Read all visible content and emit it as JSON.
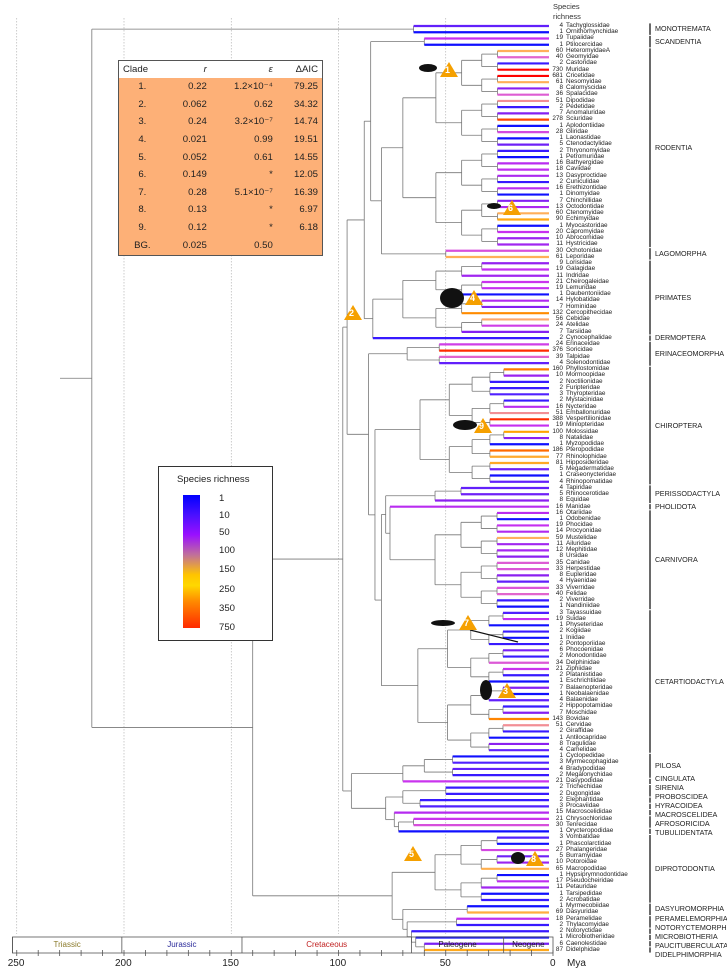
{
  "header": {
    "line1": "Species",
    "line2": "richness"
  },
  "tips": [
    {
      "name": "Tachyglossidae",
      "richness": 4
    },
    {
      "name": "Ornithorhynchidae",
      "richness": 1
    },
    {
      "name": "Tupaiidae",
      "richness": 19
    },
    {
      "name": "Ptilocercidae",
      "richness": 1
    },
    {
      "name": "HeteromyidaeA",
      "richness": 60
    },
    {
      "name": "Geomyidae",
      "richness": 40
    },
    {
      "name": "Castoridae",
      "richness": 2
    },
    {
      "name": "Muridae",
      "richness": 730
    },
    {
      "name": "Cricetidae",
      "richness": 681
    },
    {
      "name": "Nesomyidae",
      "richness": 61
    },
    {
      "name": "Calomyscidae",
      "richness": 8
    },
    {
      "name": "Spalacidae",
      "richness": 36
    },
    {
      "name": "Dipodidae",
      "richness": 51
    },
    {
      "name": "Pedetidae",
      "richness": 2
    },
    {
      "name": "Anomaluridae",
      "richness": 7
    },
    {
      "name": "Sciuridae",
      "richness": 278
    },
    {
      "name": "Aplodontiidae",
      "richness": 1
    },
    {
      "name": "Gliridae",
      "richness": 28
    },
    {
      "name": "Laonastidae",
      "richness": 1
    },
    {
      "name": "Ctenodactylidae",
      "richness": 5
    },
    {
      "name": "Thryonomyidae",
      "richness": 2
    },
    {
      "name": "Petromuridae",
      "richness": 1
    },
    {
      "name": "Bathyergidae",
      "richness": 16
    },
    {
      "name": "Caviidae",
      "richness": 18
    },
    {
      "name": "Dasyproctidae",
      "richness": 13
    },
    {
      "name": "Cuniculidae",
      "richness": 2
    },
    {
      "name": "Erethizontidae",
      "richness": 16
    },
    {
      "name": "Dinomyidae",
      "richness": 1
    },
    {
      "name": "Chinchillidae",
      "richness": 7
    },
    {
      "name": "Octodontidae",
      "richness": 13
    },
    {
      "name": "Ctenomyidae",
      "richness": 60
    },
    {
      "name": "Echimyidae",
      "richness": 90
    },
    {
      "name": "Myocastoridae",
      "richness": 1
    },
    {
      "name": "Capromyidae",
      "richness": 20
    },
    {
      "name": "Abrocomidae",
      "richness": 10
    },
    {
      "name": "Hystricidae",
      "richness": 11
    },
    {
      "name": "Ochotonidae",
      "richness": 30
    },
    {
      "name": "Leporidae",
      "richness": 61
    },
    {
      "name": "Lorisidae",
      "richness": 9
    },
    {
      "name": "Galagidae",
      "richness": 19
    },
    {
      "name": "Indridae",
      "richness": 11
    },
    {
      "name": "Cheirogaleidae",
      "richness": 21
    },
    {
      "name": "Lemuridae",
      "richness": 19
    },
    {
      "name": "Daubentoniidae",
      "richness": 1
    },
    {
      "name": "Hylobatidae",
      "richness": 14
    },
    {
      "name": "Hominidae",
      "richness": 7
    },
    {
      "name": "Cercopithecidae",
      "richness": 132
    },
    {
      "name": "Cebidae",
      "richness": 56
    },
    {
      "name": "Atelidae",
      "richness": 24
    },
    {
      "name": "Tarsiidae",
      "richness": 7
    },
    {
      "name": "Cynocephalidae",
      "richness": 2
    },
    {
      "name": "Erinaceidae",
      "richness": 24
    },
    {
      "name": "Soricidae",
      "richness": 376
    },
    {
      "name": "Talpidae",
      "richness": 39
    },
    {
      "name": "Solenodontidae",
      "richness": 4
    },
    {
      "name": "Phyllostomidae",
      "richness": 160
    },
    {
      "name": "Mormoopidae",
      "richness": 10
    },
    {
      "name": "Noctilionidae",
      "richness": 2
    },
    {
      "name": "Furipteridae",
      "richness": 2
    },
    {
      "name": "Thyropteridae",
      "richness": 3
    },
    {
      "name": "Mystacinidae",
      "richness": 2
    },
    {
      "name": "Nycteridae",
      "richness": 16
    },
    {
      "name": "Emballonuridae",
      "richness": 51
    },
    {
      "name": "Vespertilionidae",
      "richness": 388
    },
    {
      "name": "Miniopteridae",
      "richness": 19
    },
    {
      "name": "Molossidae",
      "richness": 100
    },
    {
      "name": "Natalidae",
      "richness": 8
    },
    {
      "name": "Myzopodidae",
      "richness": 1
    },
    {
      "name": "Pteropodidae",
      "richness": 186
    },
    {
      "name": "Rhinolophidae",
      "richness": 77
    },
    {
      "name": "Hipposideridae",
      "richness": 81
    },
    {
      "name": "Megadermatidae",
      "richness": 5
    },
    {
      "name": "Craseonycteridae",
      "richness": 1
    },
    {
      "name": "Rhinopomatidae",
      "richness": 4
    },
    {
      "name": "Tapiridae",
      "richness": 4
    },
    {
      "name": "Rhinocerotidae",
      "richness": 5
    },
    {
      "name": "Equidae",
      "richness": 8
    },
    {
      "name": "Manidae",
      "richness": 16
    },
    {
      "name": "Otariidae",
      "richness": 16
    },
    {
      "name": "Odobenidae",
      "richness": 1
    },
    {
      "name": "Phocidae",
      "richness": 19
    },
    {
      "name": "Procyonidae",
      "richness": 14
    },
    {
      "name": "Mustelidae",
      "richness": 59
    },
    {
      "name": "Ailuridae",
      "richness": 11
    },
    {
      "name": "Mephitidae",
      "richness": 12
    },
    {
      "name": "Ursidae",
      "richness": 8
    },
    {
      "name": "Canidae",
      "richness": 35
    },
    {
      "name": "Herpestidae",
      "richness": 33
    },
    {
      "name": "Eupleridae",
      "richness": 8
    },
    {
      "name": "Hyaenidae",
      "richness": 4
    },
    {
      "name": "Viverridae",
      "richness": 33
    },
    {
      "name": "Felidae",
      "richness": 40
    },
    {
      "name": "Viverridae",
      "richness": 2
    },
    {
      "name": "Nandiniidae",
      "richness": 1
    },
    {
      "name": "Tayassuidae",
      "richness": 3
    },
    {
      "name": "Suidae",
      "richness": 19
    },
    {
      "name": "Physeteridae",
      "richness": 1
    },
    {
      "name": "Kogiidae",
      "richness": 2
    },
    {
      "name": "Iniidae",
      "richness": 1
    },
    {
      "name": "Pontoporiidae",
      "richness": 2
    },
    {
      "name": "Phocoenidae",
      "richness": 6
    },
    {
      "name": "Monodontidae",
      "richness": 2
    },
    {
      "name": "Delphinidae",
      "richness": 34
    },
    {
      "name": "Ziphiidae",
      "richness": 21
    },
    {
      "name": "Platanistidae",
      "richness": 2
    },
    {
      "name": "Eschrichtiidae",
      "richness": 1
    },
    {
      "name": "Balaenopteridae",
      "richness": 7
    },
    {
      "name": "Neobalaenidae",
      "richness": 1
    },
    {
      "name": "Balaenidae",
      "richness": 4
    },
    {
      "name": "Hippopotamidae",
      "richness": 2
    },
    {
      "name": "Moschidae",
      "richness": 7
    },
    {
      "name": "Bovidae",
      "richness": 143
    },
    {
      "name": "Cervidae",
      "richness": 51
    },
    {
      "name": "Giraffidae",
      "richness": 2
    },
    {
      "name": "Antilocapridae",
      "richness": 1
    },
    {
      "name": "Tragulidae",
      "richness": 8
    },
    {
      "name": "Camelidae",
      "richness": 4
    },
    {
      "name": "Cyclopedidae",
      "richness": 1
    },
    {
      "name": "Myrmecophagidae",
      "richness": 3
    },
    {
      "name": "Bradypodidae",
      "richness": 4
    },
    {
      "name": "Megalonychidae",
      "richness": 2
    },
    {
      "name": "Dasypodidae",
      "richness": 21
    },
    {
      "name": "Trichechidae",
      "richness": 2
    },
    {
      "name": "Dugongidae",
      "richness": 2
    },
    {
      "name": "Elephantidae",
      "richness": 2
    },
    {
      "name": "Procaviidae",
      "richness": 3
    },
    {
      "name": "Macroscelididae",
      "richness": 15
    },
    {
      "name": "Chrysochloridae",
      "richness": 21
    },
    {
      "name": "Tenrecidae",
      "richness": 30
    },
    {
      "name": "Orycteropodidae",
      "richness": 1
    },
    {
      "name": "Vombatidae",
      "richness": 3
    },
    {
      "name": "Phascolarctidae",
      "richness": 1
    },
    {
      "name": "Phalangeridae",
      "richness": 27
    },
    {
      "name": "Burramyidae",
      "richness": 5
    },
    {
      "name": "Potoroidae",
      "richness": 10
    },
    {
      "name": "Macropodidae",
      "richness": 65
    },
    {
      "name": "Hypsiprymnodontidae",
      "richness": 1
    },
    {
      "name": "Pseudocheiridae",
      "richness": 17
    },
    {
      "name": "Petauridae",
      "richness": 11
    },
    {
      "name": "Tarsipedidae",
      "richness": 1
    },
    {
      "name": "Acrobatidae",
      "richness": 2
    },
    {
      "name": "Myrmecobiidae",
      "richness": 1
    },
    {
      "name": "Dasyuridae",
      "richness": 69
    },
    {
      "name": "Peramelidae",
      "richness": 18
    },
    {
      "name": "Thylacomyidae",
      "richness": 2
    },
    {
      "name": "Notoryctidae",
      "richness": 2
    },
    {
      "name": "Microbiotheriidae",
      "richness": 1
    },
    {
      "name": "Caenolestidae",
      "richness": 6
    },
    {
      "name": "Didelphidae",
      "richness": 87
    }
  ],
  "orders": [
    {
      "name": "MONOTREMATA",
      "first": 0,
      "last": 1,
      "crown_age": 65
    },
    {
      "name": "SCANDENTIA",
      "first": 2,
      "last": 3,
      "crown_age": 60
    },
    {
      "name": "RODENTIA",
      "first": 4,
      "last": 35,
      "crown_age": 70
    },
    {
      "name": "LAGOMORPHA",
      "first": 36,
      "last": 37,
      "crown_age": 50
    },
    {
      "name": "PRIMATES",
      "first": 38,
      "last": 49,
      "crown_age": 70
    },
    {
      "name": "DERMOPTERA",
      "first": 50,
      "last": 50,
      "crown_age": 0
    },
    {
      "name": "ERINACEOMORPHA",
      "first": 51,
      "last": 54,
      "crown_age": 68
    },
    {
      "name": "CHIROPTERA",
      "first": 55,
      "last": 73,
      "crown_age": 62
    },
    {
      "name": "PERISSODACTYLA",
      "first": 74,
      "last": 76,
      "crown_age": 55
    },
    {
      "name": "PHOLIDOTA",
      "first": 77,
      "last": 77,
      "crown_age": 0
    },
    {
      "name": "CARNIVORA",
      "first": 78,
      "last": 93,
      "crown_age": 55
    },
    {
      "name": "CETARTIODACTYLA",
      "first": 94,
      "last": 116,
      "crown_age": 63
    },
    {
      "name": "PILOSA",
      "first": 117,
      "last": 120,
      "crown_age": 60
    },
    {
      "name": "CINGULATA",
      "first": 121,
      "last": 121,
      "crown_age": 0
    },
    {
      "name": "SIRENIA",
      "first": 122,
      "last": 123,
      "crown_age": 50
    },
    {
      "name": "PROBOSCIDEA",
      "first": 124,
      "last": 124,
      "crown_age": 0
    },
    {
      "name": "HYRACOIDEA",
      "first": 125,
      "last": 125,
      "crown_age": 0
    },
    {
      "name": "MACROSCELIDEA",
      "first": 126,
      "last": 126,
      "crown_age": 0
    },
    {
      "name": "AFROSORICIDA",
      "first": 127,
      "last": 128,
      "crown_age": 65
    },
    {
      "name": "TUBULIDENTATA",
      "first": 129,
      "last": 129,
      "crown_age": 0
    },
    {
      "name": "DIPROTODONTIA",
      "first": 130,
      "last": 140,
      "crown_age": 55
    },
    {
      "name": "DASYUROMORPHIA",
      "first": 141,
      "last": 142,
      "crown_age": 40
    },
    {
      "name": "PERAMELEMORPHIA",
      "first": 143,
      "last": 144,
      "crown_age": 45
    },
    {
      "name": "NOTORYCTEMORPHIA",
      "first": 145,
      "last": 145,
      "crown_age": 0
    },
    {
      "name": "MICROBIOTHERIA",
      "first": 146,
      "last": 146,
      "crown_age": 0
    },
    {
      "name": "PAUCITUBERCULATA",
      "first": 147,
      "last": 147,
      "crown_age": 0
    },
    {
      "name": "DIDELPHIMORPHIA",
      "first": 148,
      "last": 148,
      "crown_age": 0
    }
  ],
  "backbone": {
    "age": 215,
    "children": [
      "MONOTREMATA",
      {
        "age": 140,
        "children": [
          {
            "age": 98,
            "children": [
              {
                "age": 96,
                "children": [
                  {
                    "age": 88,
                    "children": [
                      {
                        "age": 85,
                        "children": [
                          "SCANDENTIA",
                          {
                            "age": 80,
                            "children": [
                              "RODENTIA",
                              "LAGOMORPHA"
                            ]
                          }
                        ]
                      },
                      {
                        "age": 84,
                        "children": [
                          "PRIMATES",
                          "DERMOPTERA"
                        ]
                      }
                    ]
                  },
                  {
                    "age": 86,
                    "children": [
                      "ERINACEOMORPHA",
                      {
                        "age": 83,
                        "children": [
                          "CHIROPTERA",
                          {
                            "age": 80,
                            "children": [
                              {
                                "age": 78,
                                "children": [
                                  "PERISSODACTYLA",
                                  {
                                    "age": 76,
                                    "children": [
                                      "PHOLIDOTA",
                                      "CARNIVORA"
                                    ]
                                  }
                                ]
                              },
                              "CETARTIODACTYLA"
                            ]
                          }
                        ]
                      }
                    ]
                  }
                ]
              },
              {
                "age": 94,
                "children": [
                  {
                    "age": 70,
                    "children": [
                      "PILOSA",
                      "CINGULATA"
                    ]
                  },
                  {
                    "age": 78,
                    "children": [
                      {
                        "age": 70,
                        "children": [
                          "SIRENIA",
                          {
                            "age": 62,
                            "children": [
                              "PROBOSCIDEA",
                              "HYRACOIDEA"
                            ]
                          }
                        ]
                      },
                      {
                        "age": 74,
                        "children": [
                          "MACROSCELIDEA",
                          {
                            "age": 72,
                            "children": [
                              "AFROSORICIDA",
                              "TUBULIDENTATA"
                            ]
                          }
                        ]
                      }
                    ]
                  }
                ]
              }
            ]
          },
          {
            "age": 75,
            "children": [
              "DIPROTODONTIA",
              {
                "age": 70,
                "children": [
                  "DASYUROMORPHIA",
                  {
                    "age": 68,
                    "children": [
                      "PERAMELEMORPHIA",
                      {
                        "age": 66,
                        "children": [
                          "NOTORYCTEMORPHIA",
                          {
                            "age": 64,
                            "children": [
                              "MICROBIOTHERIA",
                              {
                                "age": 60,
                                "children": [
                                  "PAUCITUBERCULATA",
                                  "DIDELPHIMORPHIA"
                                ]
                              }
                            ]
                          }
                        ]
                      }
                    ]
                  }
                ]
              }
            ]
          }
        ]
      }
    ]
  },
  "rates_table": {
    "headers": [
      "Clade",
      "r",
      "ε",
      "ΔAIC"
    ],
    "rows": [
      [
        "1.",
        "0.22",
        "1.2×10⁻⁴",
        "79.25"
      ],
      [
        "2.",
        "0.062",
        "0.62",
        "34.32"
      ],
      [
        "3.",
        "0.24",
        "3.2×10⁻⁷",
        "14.74"
      ],
      [
        "4.",
        "0.021",
        "0.99",
        "19.51"
      ],
      [
        "5.",
        "0.052",
        "0.61",
        "14.55"
      ],
      [
        "6.",
        "0.149",
        "*",
        "12.05"
      ],
      [
        "7.",
        "0.28",
        "5.1×10⁻⁷",
        "16.39"
      ],
      [
        "8.",
        "0.13",
        "*",
        "6.97"
      ],
      [
        "9.",
        "0.12",
        "*",
        "6.18"
      ],
      [
        "BG.",
        "0.025",
        "0.50",
        ""
      ]
    ],
    "background": "#fdb077"
  },
  "legend": {
    "title": "Species richness",
    "ticks": [
      "1",
      "10",
      "50",
      "100",
      "150",
      "250",
      "350",
      "750"
    ]
  },
  "clade_markers": [
    "1",
    "2",
    "3",
    "4",
    "5",
    "6",
    "7",
    "8",
    "9"
  ],
  "timescale": {
    "unit": "Mya",
    "ticks": [
      "250",
      "200",
      "150",
      "100",
      "50",
      "0"
    ],
    "periods": [
      {
        "name": "Triassic",
        "start": 252,
        "end": 201,
        "color": "#8a7a2a"
      },
      {
        "name": "Jurassic",
        "start": 201,
        "end": 145,
        "color": "#2a2a9a"
      },
      {
        "name": "Cretaceous",
        "start": 145,
        "end": 66,
        "color": "#c02020"
      },
      {
        "name": "Paleogene",
        "start": 66,
        "end": 23,
        "color": "#222222"
      },
      {
        "name": "Neogene",
        "start": 23,
        "end": 0,
        "color": "#222222"
      }
    ]
  }
}
